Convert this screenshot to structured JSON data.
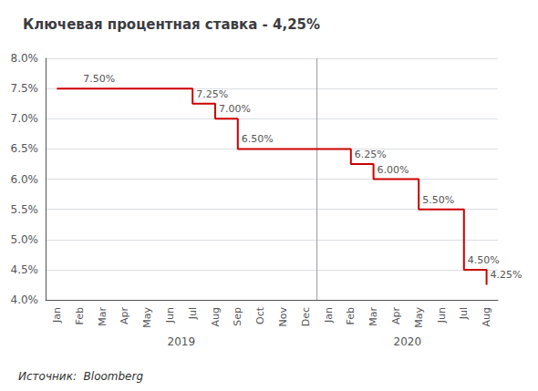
{
  "chart_data": {
    "type": "line",
    "title": "Ключевая процентная ставка - 4,25%",
    "source": "Источник:  Bloomberg",
    "categories": [
      "Jan",
      "Feb",
      "Mar",
      "Apr",
      "May",
      "Jun",
      "Jul",
      "Aug",
      "Sep",
      "Oct",
      "Nov",
      "Dec",
      "Jan",
      "Feb",
      "Mar",
      "Apr",
      "May",
      "Jun",
      "Jul",
      "Aug"
    ],
    "category_groups": [
      {
        "label": "2019",
        "count": 12
      },
      {
        "label": "2020",
        "count": 8
      }
    ],
    "values": [
      7.5,
      7.5,
      7.5,
      7.5,
      7.5,
      7.5,
      7.25,
      7.0,
      6.5,
      6.5,
      6.5,
      6.5,
      6.5,
      6.25,
      6.0,
      6.0,
      5.5,
      5.5,
      4.5,
      4.25
    ],
    "color": "#cc0000",
    "line_style": "step",
    "ylim": [
      4.0,
      8.0
    ],
    "yticks": [
      {
        "value": 4.0,
        "label": "4.0%"
      },
      {
        "value": 4.5,
        "label": "4.5%"
      },
      {
        "value": 5.0,
        "label": "5.0%"
      },
      {
        "value": 5.5,
        "label": "5.5%"
      },
      {
        "value": 6.0,
        "label": "6.0%"
      },
      {
        "value": 6.5,
        "label": "6.5%"
      },
      {
        "value": 7.0,
        "label": "7.0%"
      },
      {
        "value": 7.5,
        "label": "7.5%"
      },
      {
        "value": 8.0,
        "label": "8.0%"
      }
    ],
    "grid": true,
    "annotations": [
      {
        "text": "7.50%",
        "x": 1,
        "y": 7.5
      },
      {
        "text": "7.25%",
        "x": 6,
        "y": 7.25
      },
      {
        "text": "7.00%",
        "x": 7,
        "y": 7.0
      },
      {
        "text": "6.50%",
        "x": 8,
        "y": 6.5
      },
      {
        "text": "6.25%",
        "x": 13,
        "y": 6.25
      },
      {
        "text": "6.00%",
        "x": 14,
        "y": 6.0
      },
      {
        "text": "5.50%",
        "x": 16,
        "y": 5.5
      },
      {
        "text": "4.50%",
        "x": 18,
        "y": 4.5
      },
      {
        "text": "4.25%",
        "x": 19,
        "y": 4.25
      }
    ]
  }
}
